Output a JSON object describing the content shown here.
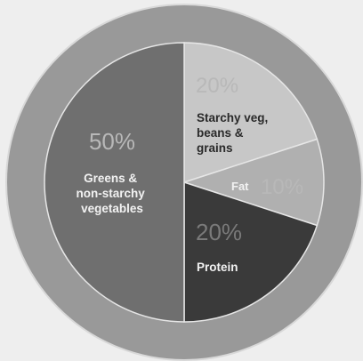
{
  "chart_data": {
    "type": "pie",
    "title": "",
    "slices": [
      {
        "percent_label": "50%",
        "label_lines": [
          "Greens &",
          "non-starchy",
          "vegetables"
        ],
        "value": 50,
        "color": "#6f6f6f"
      },
      {
        "percent_label": "20%",
        "label_lines": [
          "Starchy veg,",
          "beans &",
          "grains"
        ],
        "value": 20,
        "color": "#c7c7c7"
      },
      {
        "percent_label": "10%",
        "label_lines": [
          "Fat"
        ],
        "value": 10,
        "color": "#b0b0b0"
      },
      {
        "percent_label": "20%",
        "label_lines": [
          "Protein"
        ],
        "value": 20,
        "color": "#3a3a3a"
      }
    ],
    "ring_color": "#999999",
    "ring_outline_color": "#d8d8d8",
    "percent_text_color": "#b8b8b8",
    "label_light_color": "#f2f2f2",
    "label_dark_color": "#2a2a2a"
  }
}
